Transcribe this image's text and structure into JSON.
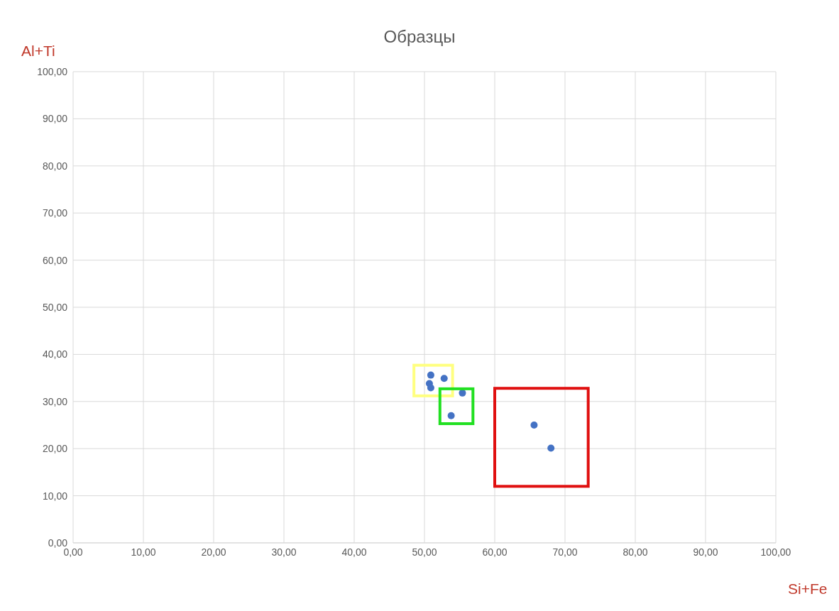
{
  "chart_data": {
    "type": "scatter",
    "title": "Образцы",
    "xlabel": "Si+Fe",
    "ylabel": "Al+Ti",
    "series": [
      {
        "color": "#4472c4",
        "x": [
          50.9,
          52.8,
          50.7,
          50.9,
          55.4,
          53.8,
          65.6,
          68.0
        ],
        "values": [
          35.6,
          34.9,
          33.8,
          32.9,
          31.8,
          27.0,
          25.0,
          20.1
        ]
      }
    ],
    "xlim": [
      0,
      100
    ],
    "ylim": [
      0,
      100
    ],
    "xticks": [
      {
        "value": 0,
        "label": "0,00"
      },
      {
        "value": 10,
        "label": "10,00"
      },
      {
        "value": 20,
        "label": "20,00"
      },
      {
        "value": 30,
        "label": "30,00"
      },
      {
        "value": 40,
        "label": "40,00"
      },
      {
        "value": 50,
        "label": "50,00"
      },
      {
        "value": 60,
        "label": "60,00"
      },
      {
        "value": 70,
        "label": "70,00"
      },
      {
        "value": 80,
        "label": "80,00"
      },
      {
        "value": 90,
        "label": "90,00"
      },
      {
        "value": 100,
        "label": "100,00"
      }
    ],
    "yticks": [
      {
        "value": 0,
        "label": "0,00"
      },
      {
        "value": 10,
        "label": "10,00"
      },
      {
        "value": 20,
        "label": "20,00"
      },
      {
        "value": 30,
        "label": "30,00"
      },
      {
        "value": 40,
        "label": "40,00"
      },
      {
        "value": 50,
        "label": "50,00"
      },
      {
        "value": 60,
        "label": "60,00"
      },
      {
        "value": 70,
        "label": "70,00"
      },
      {
        "value": 80,
        "label": "80,00"
      },
      {
        "value": 90,
        "label": "90,00"
      },
      {
        "value": 100,
        "label": "100,00"
      }
    ],
    "grid": true,
    "marker": "circle",
    "legend": false
  }
}
